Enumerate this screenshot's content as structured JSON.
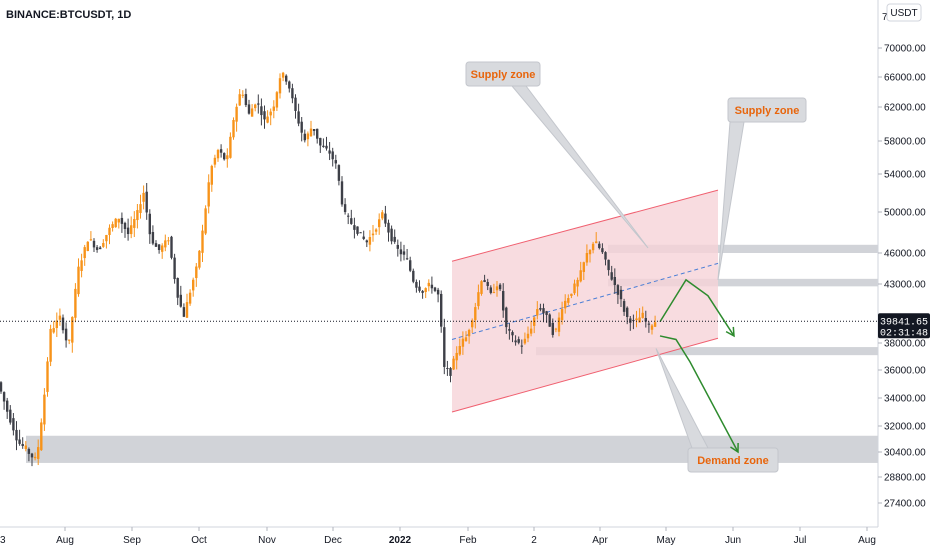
{
  "header": {
    "symbol": "BINANCE:BTCUSDT, 1D"
  },
  "currency_badge": "USDT",
  "price_tag": {
    "price": "39841.65",
    "countdown": "02:31:48"
  },
  "colors": {
    "up_candle": "#f7931a",
    "down_candle": "#3d3f47",
    "channel_fill": "#f6d3d8",
    "channel_line": "#f06070",
    "zone_fill": "#c9cbd1",
    "arrow": "#2e8b2e",
    "midline": "#4a7ed6",
    "label_text": "#e8650c"
  },
  "chart_data": {
    "type": "candlestick",
    "symbol": "BINANCE:BTCUSDT",
    "interval": "1D",
    "quote": "USDT",
    "ylim": [
      26000,
      74000
    ],
    "y_ticks": [
      "70000.00",
      "66000.00",
      "62000.00",
      "58000.00",
      "54000.00",
      "50000.00",
      "46000.00",
      "43000.00",
      "38000.00",
      "36000.00",
      "34000.00",
      "32000.00",
      "30400.00",
      "28800.00",
      "27400.00"
    ],
    "x_ticks": [
      "Aug",
      "Sep",
      "Oct",
      "Nov",
      "Dec",
      "2022",
      "Feb",
      "2",
      "Apr",
      "May",
      "Jun",
      "Jul",
      "Aug"
    ],
    "last_price": 39841.65,
    "path": [
      [
        0,
        35000
      ],
      [
        10,
        32800
      ],
      [
        20,
        31000
      ],
      [
        30,
        30400
      ],
      [
        38,
        29800
      ],
      [
        45,
        33500
      ],
      [
        52,
        39000
      ],
      [
        62,
        40200
      ],
      [
        70,
        37500
      ],
      [
        80,
        44500
      ],
      [
        90,
        47500
      ],
      [
        100,
        46200
      ],
      [
        110,
        48200
      ],
      [
        120,
        49500
      ],
      [
        130,
        47800
      ],
      [
        140,
        50200
      ],
      [
        145,
        52200
      ],
      [
        152,
        47500
      ],
      [
        160,
        46200
      ],
      [
        170,
        47400
      ],
      [
        178,
        42500
      ],
      [
        185,
        40200
      ],
      [
        190,
        41800
      ],
      [
        198,
        44500
      ],
      [
        205,
        48600
      ],
      [
        212,
        54500
      ],
      [
        220,
        57000
      ],
      [
        228,
        55400
      ],
      [
        235,
        60500
      ],
      [
        243,
        64500
      ],
      [
        250,
        61000
      ],
      [
        258,
        62800
      ],
      [
        266,
        60400
      ],
      [
        275,
        62000
      ],
      [
        283,
        66800
      ],
      [
        290,
        65000
      ],
      [
        298,
        61000
      ],
      [
        306,
        58000
      ],
      [
        314,
        59800
      ],
      [
        322,
        57400
      ],
      [
        330,
        56800
      ],
      [
        338,
        55000
      ],
      [
        345,
        50000
      ],
      [
        352,
        49000
      ],
      [
        360,
        48000
      ],
      [
        368,
        47000
      ],
      [
        376,
        48200
      ],
      [
        384,
        49800
      ],
      [
        392,
        47600
      ],
      [
        400,
        46200
      ],
      [
        408,
        45500
      ],
      [
        416,
        43000
      ],
      [
        424,
        42400
      ],
      [
        432,
        43000
      ],
      [
        440,
        42000
      ],
      [
        446,
        36000
      ],
      [
        452,
        35800
      ],
      [
        460,
        37800
      ],
      [
        468,
        38500
      ],
      [
        476,
        40800
      ],
      [
        484,
        43800
      ],
      [
        492,
        42000
      ],
      [
        500,
        43200
      ],
      [
        508,
        39200
      ],
      [
        516,
        38200
      ],
      [
        524,
        37800
      ],
      [
        532,
        39200
      ],
      [
        540,
        41200
      ],
      [
        548,
        40200
      ],
      [
        556,
        38600
      ],
      [
        564,
        41200
      ],
      [
        572,
        42200
      ],
      [
        580,
        43400
      ],
      [
        588,
        45800
      ],
      [
        596,
        47200
      ],
      [
        604,
        46000
      ],
      [
        612,
        43800
      ],
      [
        620,
        42200
      ],
      [
        628,
        40200
      ],
      [
        636,
        39700
      ],
      [
        644,
        40400
      ],
      [
        650,
        39300
      ],
      [
        656,
        39842
      ]
    ],
    "annotations": [
      {
        "type": "ascending_channel",
        "x": [
          452,
          718
        ],
        "lower": [
          33000,
          38400
        ],
        "upper": [
          45200,
          52300
        ]
      },
      {
        "type": "channel_midline",
        "x": [
          452,
          718
        ],
        "y": [
          38300,
          45000
        ]
      },
      {
        "type": "zone",
        "x": [
          608,
          878
        ],
        "y": [
          46000,
          46800
        ]
      },
      {
        "type": "zone",
        "x": [
          608,
          878
        ],
        "y": [
          42800,
          43500
        ]
      },
      {
        "type": "zone",
        "x": [
          536,
          878
        ],
        "y": [
          37100,
          37700
        ]
      },
      {
        "type": "zone",
        "x": [
          26,
          878
        ],
        "y": [
          29700,
          31400
        ]
      },
      {
        "type": "path_arrow",
        "points": [
          [
            660,
            39800
          ],
          [
            686,
            43400
          ],
          [
            708,
            42000
          ],
          [
            734,
            38600
          ]
        ]
      },
      {
        "type": "path_arrow",
        "points": [
          [
            660,
            38600
          ],
          [
            676,
            38300
          ],
          [
            690,
            36600
          ],
          [
            738,
            30400
          ]
        ]
      }
    ],
    "callouts": [
      {
        "text": "Supply zone",
        "tip": [
          648,
          46500
        ]
      },
      {
        "text": "Supply zone",
        "tip": [
          718,
          43400
        ]
      },
      {
        "text": "Demand zone",
        "tip": [
          656,
          37600
        ]
      }
    ]
  }
}
